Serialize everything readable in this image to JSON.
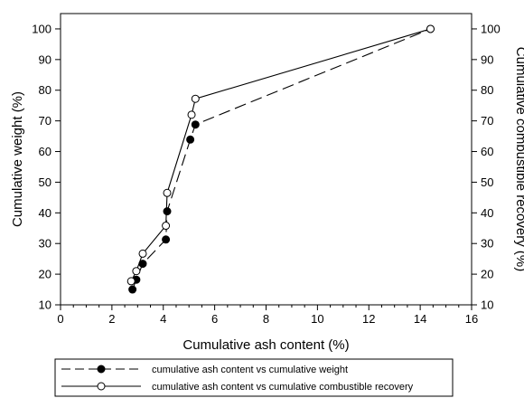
{
  "chart_data": {
    "type": "line",
    "title": "",
    "xlabel": "Cumulative ash content (%)",
    "ylabel": "Cumulative weight (%)",
    "ylabel_right": "Cumulative combustible recovery (%)",
    "xlim": [
      0,
      16
    ],
    "ylim": [
      10,
      105
    ],
    "ylim_right": [
      10,
      105
    ],
    "x_ticks": [
      "0",
      "2",
      "4",
      "6",
      "8",
      "10",
      "12",
      "14",
      "16"
    ],
    "y_ticks": [
      "10",
      "20",
      "30",
      "40",
      "50",
      "60",
      "70",
      "80",
      "90",
      "100"
    ],
    "y_ticks_right": [
      "10",
      "20",
      "30",
      "40",
      "50",
      "60",
      "70",
      "80",
      "90",
      "100"
    ],
    "grid": false,
    "legend_position": "bottom",
    "series": [
      {
        "name": "cumulative ash content vs cumulative weight",
        "axis": "left",
        "line_style": "dashed",
        "marker": "filled-circle",
        "color": "#000000",
        "points": [
          [
            2.8,
            15
          ],
          [
            2.95,
            18.2
          ],
          [
            3.2,
            23.4
          ],
          [
            4.1,
            31.3
          ],
          [
            4.15,
            40.5
          ],
          [
            5.05,
            63.9
          ],
          [
            5.25,
            68.8
          ],
          [
            14.4,
            100
          ]
        ]
      },
      {
        "name": "cumulative ash content vs cumulative combustible recovery",
        "axis": "right",
        "line_style": "solid",
        "marker": "open-circle",
        "color": "#000000",
        "points": [
          [
            2.75,
            17.7
          ],
          [
            2.95,
            21
          ],
          [
            3.2,
            26.7
          ],
          [
            4.1,
            35.8
          ],
          [
            4.15,
            46.5
          ],
          [
            5.1,
            72
          ],
          [
            5.25,
            77.2
          ],
          [
            14.4,
            100
          ]
        ]
      }
    ]
  }
}
